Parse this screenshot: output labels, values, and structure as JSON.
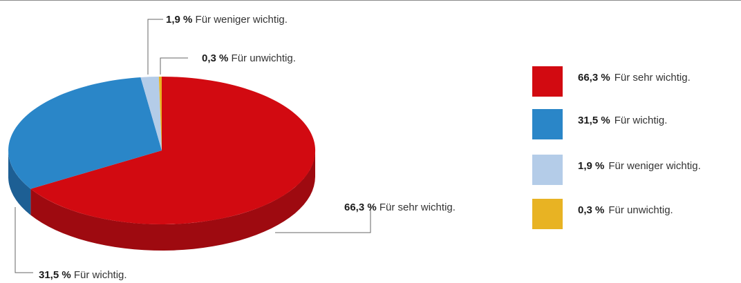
{
  "chart_data": {
    "type": "pie",
    "style": "3d-exploded-none",
    "slices": [
      {
        "pct_label": "66,3 %",
        "label": "Für sehr wichtig.",
        "value": 66.3,
        "color": "#d20a11",
        "side_color": "#9e0a10"
      },
      {
        "pct_label": "31,5 %",
        "label": "Für wichtig.",
        "value": 31.5,
        "color": "#2a86c8",
        "side_color": "#1d5f94"
      },
      {
        "pct_label": "1,9 %",
        "label": "Für weniger wichtig.",
        "value": 1.9,
        "color": "#b4cce8",
        "side_color": "#8aa6c6"
      },
      {
        "pct_label": "0,3 %",
        "label": "Für unwichtig.",
        "value": 0.3,
        "color": "#e8b323",
        "side_color": "#b38a17"
      }
    ],
    "legend_position": "right"
  },
  "colors": {
    "leader_line": "#666666",
    "background": "#ffffff"
  }
}
